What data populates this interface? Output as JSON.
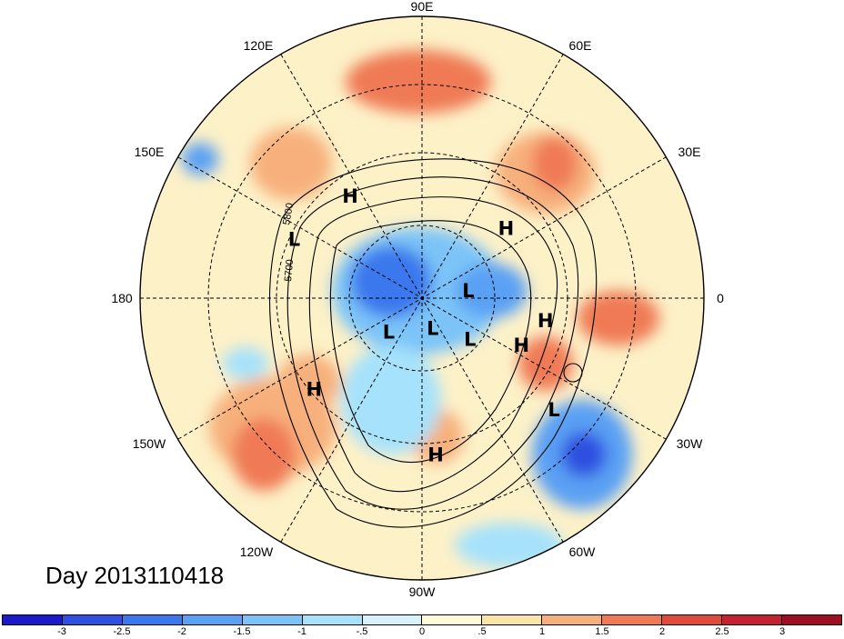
{
  "title": "Day 2013110418",
  "longitude_labels": {
    "lon_90e": "90E",
    "lon_60e": "60E",
    "lon_30e": "30E",
    "lon_0": "0",
    "lon_30w": "30W",
    "lon_60w": "60W",
    "lon_90w": "90W",
    "lon_120w": "120W",
    "lon_150w": "150W",
    "lon_180": "180",
    "lon_150e": "150E",
    "lon_120e": "120E"
  },
  "contour_labels": [
    "5800",
    "5700"
  ],
  "pressure_centers": [
    {
      "type": "L",
      "lon": 155,
      "lat": 45
    },
    {
      "type": "H",
      "lon": 125,
      "lat": 50
    },
    {
      "type": "H",
      "lon": 40,
      "lat": 55
    },
    {
      "type": "L",
      "lon": -135,
      "lat": 75
    },
    {
      "type": "L",
      "lon": 10,
      "lat": 75
    },
    {
      "type": "L",
      "lon": -70,
      "lat": 80
    },
    {
      "type": "L",
      "lon": -40,
      "lat": 70
    },
    {
      "type": "H",
      "lon": -10,
      "lat": 50
    },
    {
      "type": "H",
      "lon": -25,
      "lat": 55
    },
    {
      "type": "H",
      "lon": -140,
      "lat": 45
    },
    {
      "type": "L",
      "lon": -40,
      "lat": 35
    },
    {
      "type": "H",
      "lon": -85,
      "lat": 40
    }
  ],
  "colorbar": {
    "colors": [
      "#1a1acc",
      "#2e4fe0",
      "#3a78ee",
      "#5aa0f4",
      "#7cc4f8",
      "#a6e2fb",
      "#d8f2fb",
      "#fffbd6",
      "#fbe4a6",
      "#f7b07c",
      "#ef7a55",
      "#e04a3a",
      "#c42230",
      "#9e0f1f"
    ],
    "ticks": [
      "-3",
      "-2.5",
      "-2",
      "-1.5",
      "-1",
      "-.5",
      "0",
      ".5",
      "1",
      "1.5",
      "2",
      "2.5",
      "3"
    ]
  }
}
